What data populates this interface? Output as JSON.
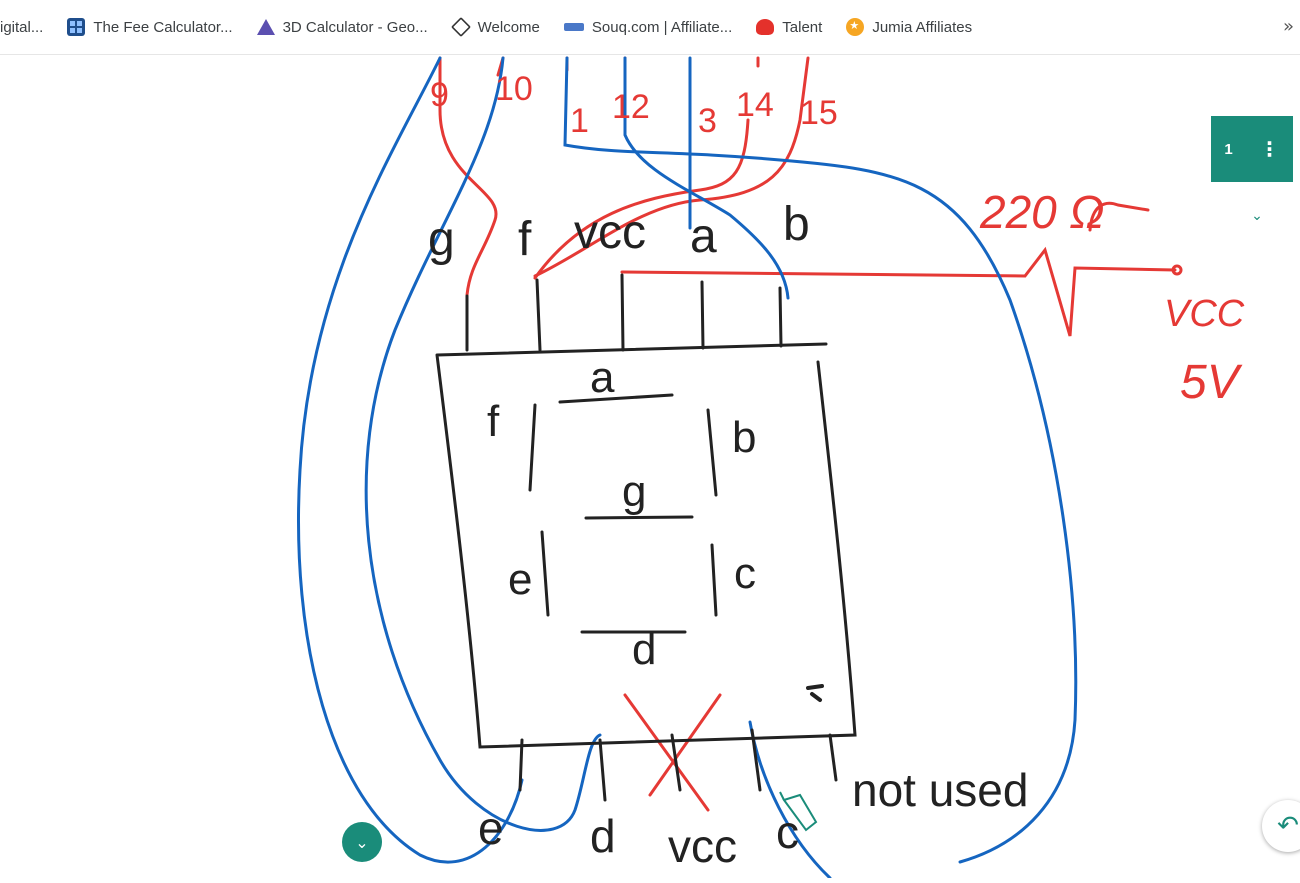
{
  "bookmarks": {
    "items": [
      {
        "label": "igital...",
        "icon": "none"
      },
      {
        "label": "The Fee Calculator...",
        "icon": "calculator-icon"
      },
      {
        "label": "3D Calculator - Geo...",
        "icon": "geogebra-icon"
      },
      {
        "label": "Welcome",
        "icon": "welcome-icon"
      },
      {
        "label": "Souq.com | Affiliate...",
        "icon": "souq-icon"
      },
      {
        "label": "Talent",
        "icon": "huawei-icon"
      },
      {
        "label": "Jumia Affiliates",
        "icon": "jumia-icon"
      }
    ],
    "more_label": "»"
  },
  "toolbar": {
    "page_number": "1",
    "menu_icon": "kebab-icon",
    "collapse_icon": "chevron-down-icon",
    "expand_icon": "chevron-down-circle-icon",
    "undo_icon": "undo-icon"
  },
  "drawing": {
    "pin_numbers": [
      "9",
      "10",
      "1",
      "12",
      "3",
      "14",
      "15"
    ],
    "top_pins": [
      "g",
      "f",
      "vcc",
      "a",
      "b"
    ],
    "segments": {
      "a": "a",
      "b": "b",
      "c": "c",
      "d": "d",
      "e": "e",
      "f": "f",
      "g": "g"
    },
    "bottom_pins": [
      "e",
      "d",
      "vcc",
      "c"
    ],
    "not_used": "not used",
    "resistor_label": "220 Ω",
    "supply_label_1": "VCC",
    "supply_label_2": "5V"
  },
  "colors": {
    "red": "#e53935",
    "blue": "#1565c0",
    "black": "#222222",
    "teal": "#1a8c7a"
  }
}
